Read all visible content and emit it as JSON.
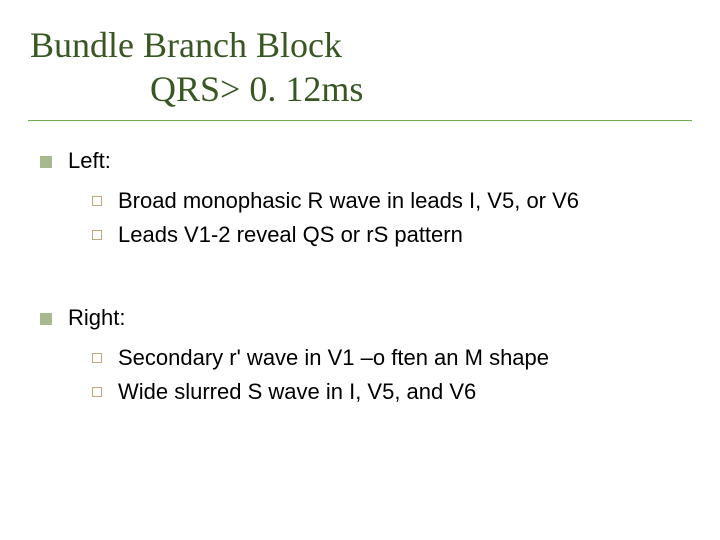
{
  "colors": {
    "title": "#385723",
    "title_underline": "#70ad47",
    "bullet_level1": "#a9b98f",
    "bullet_level2": "#bfa97a",
    "body_text": "#000000",
    "background": "#ffffff"
  },
  "fonts": {
    "title_family": "Times New Roman",
    "title_size_pt": 36,
    "body_family": "Arial",
    "body_size_pt": 22
  },
  "title": {
    "line1": "Bundle Branch Block",
    "line2": "QRS> 0. 12ms"
  },
  "sections": [
    {
      "heading": "Left:",
      "items": [
        "Broad monophasic R wave in leads I, V5, or V6",
        "Leads V1-2 reveal QS or rS pattern"
      ]
    },
    {
      "heading": "Right:",
      "items": [
        "Secondary r' wave in V1 –o ften an M shape",
        "Wide slurred S wave in I, V5, and V6"
      ]
    }
  ]
}
